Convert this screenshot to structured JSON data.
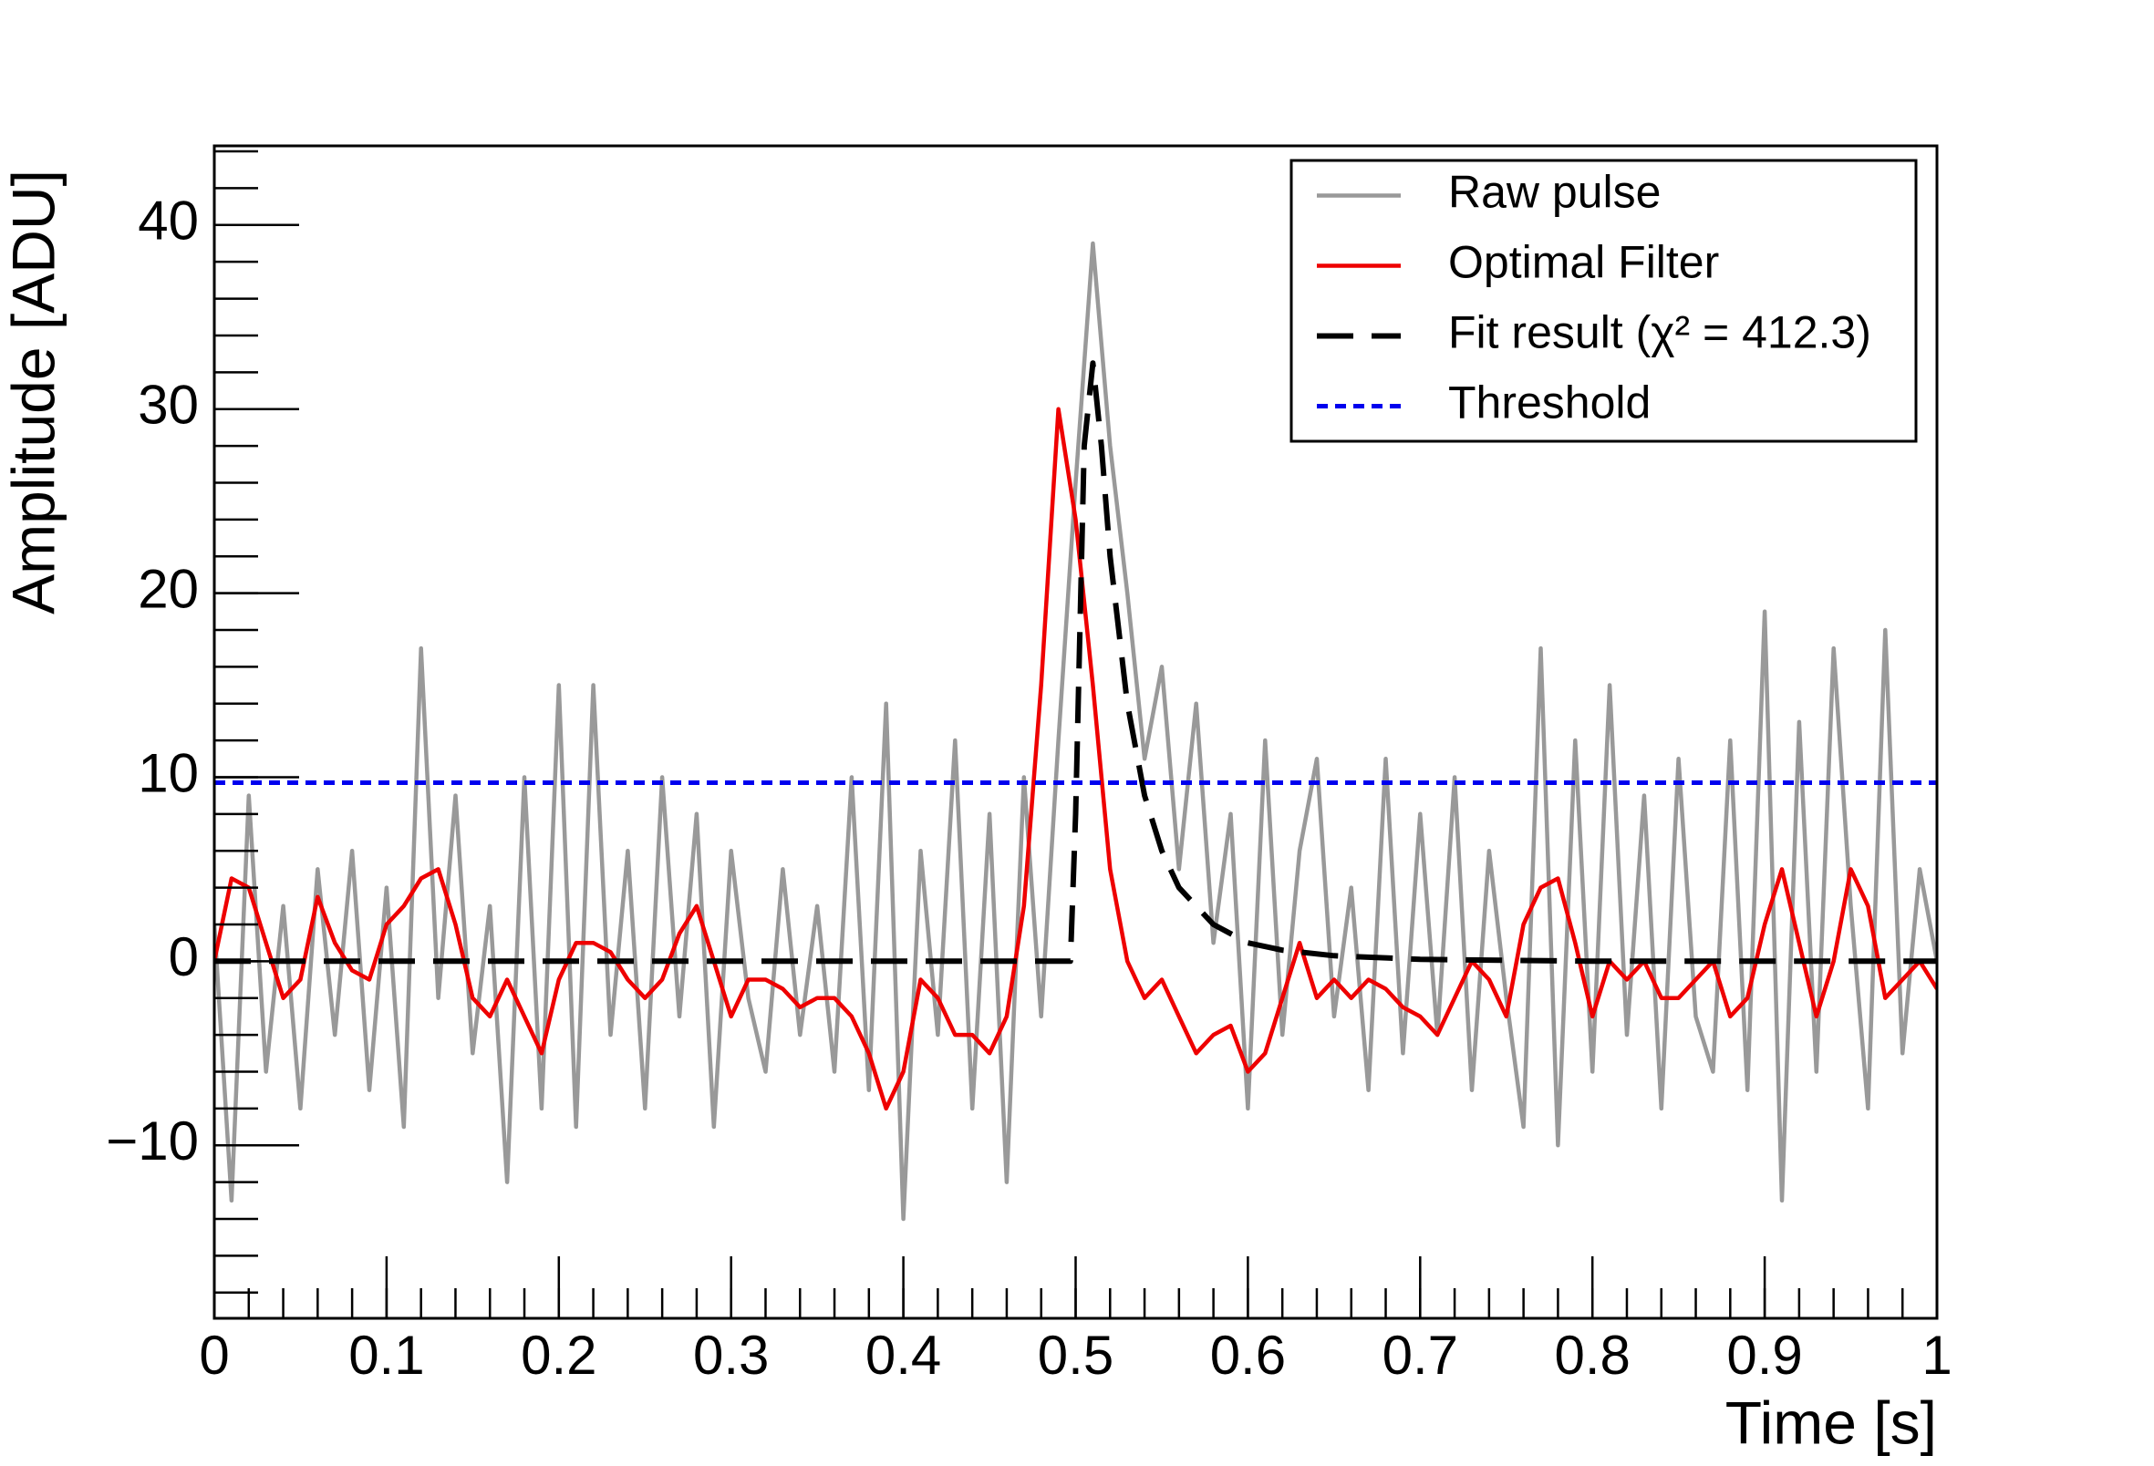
{
  "chart_data": {
    "type": "line",
    "xlabel": "Time [s]",
    "ylabel": "Amplitude [ADU]",
    "xlim": [
      0,
      1
    ],
    "ylim": [
      -19.4,
      44.3
    ],
    "xticks": [
      0,
      0.1,
      0.2,
      0.3,
      0.4,
      0.5,
      0.6,
      0.7,
      0.8,
      0.9,
      1
    ],
    "yticks": [
      {
        "value": -10,
        "label": "−10"
      },
      0,
      10,
      20,
      30,
      40
    ],
    "minor_per_major": 5,
    "legend": "top-right",
    "series": [
      {
        "name": "Raw pulse",
        "color": "#999999",
        "style": "solid",
        "x": [
          0,
          0.01,
          0.02,
          0.03,
          0.04,
          0.05,
          0.06,
          0.07,
          0.08,
          0.09,
          0.1,
          0.11,
          0.12,
          0.13,
          0.14,
          0.15,
          0.16,
          0.17,
          0.18,
          0.19,
          0.2,
          0.21,
          0.22,
          0.23,
          0.24,
          0.25,
          0.26,
          0.27,
          0.28,
          0.29,
          0.3,
          0.31,
          0.32,
          0.33,
          0.34,
          0.35,
          0.36,
          0.37,
          0.38,
          0.39,
          0.4,
          0.41,
          0.42,
          0.43,
          0.44,
          0.45,
          0.46,
          0.47,
          0.48,
          0.49,
          0.5,
          0.51,
          0.52,
          0.53,
          0.54,
          0.55,
          0.56,
          0.57,
          0.58,
          0.59,
          0.6,
          0.61,
          0.62,
          0.63,
          0.64,
          0.65,
          0.66,
          0.67,
          0.68,
          0.69,
          0.7,
          0.71,
          0.72,
          0.73,
          0.74,
          0.75,
          0.76,
          0.77,
          0.78,
          0.79,
          0.8,
          0.81,
          0.82,
          0.83,
          0.84,
          0.85,
          0.86,
          0.87,
          0.88,
          0.89,
          0.9,
          0.91,
          0.92,
          0.93,
          0.94,
          0.95,
          0.96,
          0.97,
          0.98,
          0.99,
          1
        ],
        "values": [
          2,
          -13,
          9,
          -6,
          3,
          -8,
          5,
          -4,
          6,
          -7,
          4,
          -9,
          17,
          -2,
          9,
          -5,
          3,
          -12,
          10,
          -8,
          15,
          -9,
          15,
          -4,
          6,
          -8,
          10,
          -3,
          8,
          -9,
          6,
          -2,
          -6,
          5,
          -4,
          3,
          -6,
          10,
          -7,
          14,
          -14,
          6,
          -4,
          12,
          -8,
          8,
          -12,
          10,
          -3,
          12,
          26,
          39,
          28,
          20,
          11,
          16,
          5,
          14,
          1,
          8,
          -8,
          12,
          -4,
          6,
          11,
          -3,
          4,
          -7,
          11,
          -5,
          8,
          -4,
          10,
          -7,
          6,
          -2,
          -9,
          17,
          -10,
          12,
          -6,
          15,
          -4,
          9,
          -8,
          11,
          -3,
          -6,
          12,
          -7,
          19,
          -13,
          13,
          -6,
          17,
          3,
          -8,
          18,
          -5,
          5,
          0
        ]
      },
      {
        "name": "Optimal Filter",
        "color": "#ee0000",
        "style": "solid",
        "x": [
          0,
          0.01,
          0.02,
          0.03,
          0.04,
          0.05,
          0.06,
          0.07,
          0.08,
          0.09,
          0.1,
          0.11,
          0.12,
          0.13,
          0.14,
          0.15,
          0.16,
          0.17,
          0.18,
          0.19,
          0.2,
          0.21,
          0.22,
          0.23,
          0.24,
          0.25,
          0.26,
          0.27,
          0.28,
          0.29,
          0.3,
          0.31,
          0.32,
          0.33,
          0.34,
          0.35,
          0.36,
          0.37,
          0.38,
          0.39,
          0.4,
          0.41,
          0.42,
          0.43,
          0.44,
          0.45,
          0.46,
          0.47,
          0.48,
          0.49,
          0.5,
          0.51,
          0.52,
          0.53,
          0.54,
          0.55,
          0.56,
          0.57,
          0.58,
          0.59,
          0.6,
          0.61,
          0.62,
          0.63,
          0.64,
          0.65,
          0.66,
          0.67,
          0.68,
          0.69,
          0.7,
          0.71,
          0.72,
          0.73,
          0.74,
          0.75,
          0.76,
          0.77,
          0.78,
          0.79,
          0.8,
          0.81,
          0.82,
          0.83,
          0.84,
          0.85,
          0.86,
          0.87,
          0.88,
          0.89,
          0.9,
          0.91,
          0.92,
          0.93,
          0.94,
          0.95,
          0.96,
          0.97,
          0.98,
          0.99,
          1
        ],
        "values": [
          0,
          4.5,
          4,
          1,
          -2,
          -1,
          3.5,
          1,
          -0.5,
          -1,
          2,
          3,
          4.5,
          5,
          2,
          -2,
          -3,
          -1,
          -3,
          -5,
          -1,
          1,
          1,
          0.5,
          -1,
          -2,
          -1,
          1.5,
          3,
          0,
          -3,
          -1,
          -1,
          -1.5,
          -2.5,
          -2,
          -2,
          -3,
          -5,
          -8,
          -6,
          -1,
          -2,
          -4,
          -4,
          -5,
          -3,
          3,
          15,
          30,
          24,
          15,
          5,
          0,
          -2,
          -1,
          -3,
          -5,
          -4,
          -3.5,
          -6,
          -5,
          -2,
          1,
          -2,
          -1,
          -2,
          -1,
          -1.5,
          -2.5,
          -3,
          -4,
          -2,
          0,
          -1,
          -3,
          2,
          4,
          4.5,
          1,
          -3,
          0,
          -1,
          0,
          -2,
          -2,
          -1,
          0,
          -3,
          -2,
          2,
          5,
          1,
          -3,
          0,
          5,
          3,
          -2,
          -1,
          0,
          -1.5
        ]
      },
      {
        "name": "Fit result (χ² = 412.3)",
        "color": "#000000",
        "style": "dashed",
        "x": [
          0,
          0.49,
          0.497,
          0.5,
          0.505,
          0.51,
          0.515,
          0.52,
          0.53,
          0.54,
          0.55,
          0.56,
          0.58,
          0.6,
          0.62,
          0.65,
          0.7,
          0.8,
          1
        ],
        "values": [
          0,
          0,
          0,
          8,
          28,
          32.5,
          28,
          22,
          14,
          9,
          6,
          4,
          2,
          1,
          0.6,
          0.3,
          0.1,
          0,
          0
        ]
      },
      {
        "name": "Threshold",
        "color": "#0000ee",
        "style": "dotted",
        "x": [
          0,
          1
        ],
        "values": [
          9.7,
          9.7
        ]
      }
    ]
  }
}
